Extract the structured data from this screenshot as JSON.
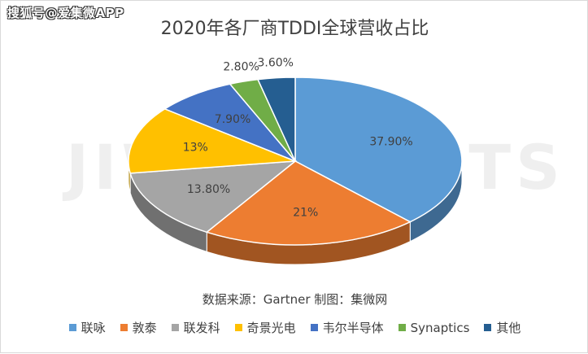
{
  "watermark_text": "搜狐号@爱集微APP",
  "bg_watermark_text": "JIWINSIGHTS",
  "source_text": "数据来源：Gartner   制图：集微网",
  "chart_data": {
    "type": "pie",
    "title": "2020年各厂商TDDI全球营收占比",
    "categories": [
      "联咏",
      "敦泰",
      "联发科",
      "奇景光电",
      "韦尔半导体",
      "Synaptics",
      "其他"
    ],
    "values": [
      37.9,
      21,
      13.8,
      13,
      7.9,
      2.8,
      3.6
    ],
    "data_labels": [
      "37.90%",
      "21%",
      "13.80%",
      "13%",
      "7.90%",
      "2.80%",
      "3.60%"
    ],
    "colors": [
      "#5b9bd5",
      "#ed7d31",
      "#a5a5a5",
      "#ffc000",
      "#4472c4",
      "#70ad47",
      "#255e91"
    ],
    "legend_position": "bottom",
    "style": "3d"
  }
}
